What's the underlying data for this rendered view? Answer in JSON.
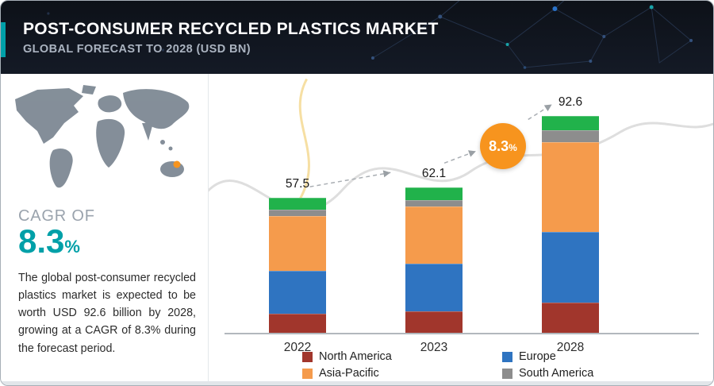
{
  "header": {
    "title": "POST-CONSUMER RECYCLED PLASTICS MARKET",
    "subtitle": "GLOBAL FORECAST TO 2028 (USD BN)"
  },
  "sidebar": {
    "cagr_label": "CAGR OF",
    "cagr_value": "8.3",
    "cagr_unit": "%",
    "description": "The global post-consumer recycled plastics market is expected to be worth USD 92.6 billion by 2028, growing at a CAGR of 8.3% during the forecast period."
  },
  "chart": {
    "badge": {
      "value": "8.3",
      "unit": "%",
      "color": "#F7941E"
    }
  },
  "colors": {
    "accent_teal": "#00A0A8",
    "badge_orange": "#F7941E",
    "header_background": "#12161F"
  },
  "chart_data": {
    "type": "bar",
    "stacked": true,
    "title": "Post-Consumer Recycled Plastics Market, Global Forecast to 2028 (USD BN)",
    "categories": [
      "2022",
      "2023",
      "2028"
    ],
    "totals": [
      57.5,
      62.1,
      92.6
    ],
    "value_unit": "USD BN",
    "series": [
      {
        "name": "North America",
        "color": "#A1362C",
        "values": [
          8.0,
          9.0,
          13.0
        ],
        "in_legend": true
      },
      {
        "name": "Europe",
        "color": "#2F74C1",
        "values": [
          18.5,
          20.5,
          30.0
        ],
        "in_legend": true
      },
      {
        "name": "Asia-Pacific",
        "color": "#F59B4C",
        "values": [
          23.5,
          24.5,
          38.5
        ],
        "in_legend": true
      },
      {
        "name": "South America",
        "color": "#8D8D8D",
        "values": [
          2.5,
          2.6,
          5.0
        ],
        "in_legend": true
      },
      {
        "name": "",
        "color": "#21B24B",
        "values": [
          5.0,
          5.5,
          6.1
        ],
        "in_legend": false
      }
    ],
    "ylim": [
      0,
      100
    ],
    "grid": false,
    "legend_position": "bottom",
    "growth_annotation": "8.3%"
  }
}
